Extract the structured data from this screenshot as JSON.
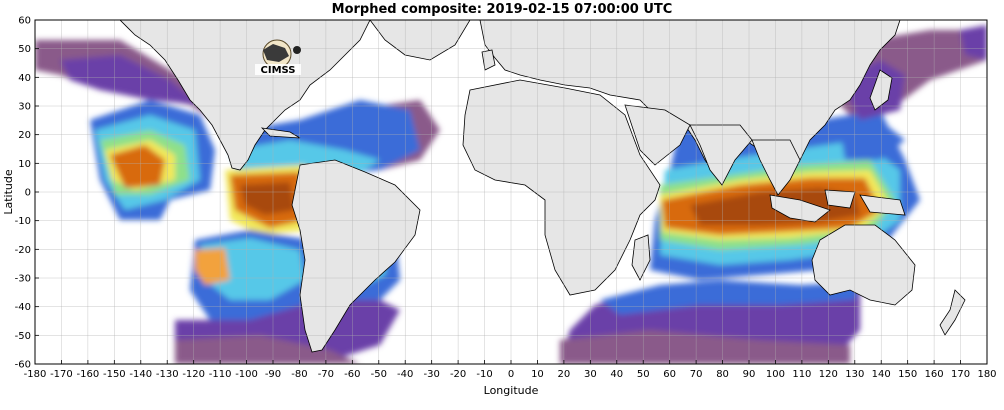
{
  "title": "Morphed composite: 2019-02-15 07:00:00 UTC",
  "logo_text": "CIMSS",
  "axes": {
    "xlabel": "Longitude",
    "ylabel": "Latitude",
    "xlim": [
      -180,
      180
    ],
    "ylim": [
      -60,
      60
    ],
    "x_ticks": [
      "-180",
      "-170",
      "-160",
      "-150",
      "-140",
      "-130",
      "-120",
      "-110",
      "-100",
      "-90",
      "-80",
      "-70",
      "-60",
      "-50",
      "-40",
      "-30",
      "-20",
      "-10",
      "0",
      "10",
      "20",
      "30",
      "40",
      "50",
      "60",
      "70",
      "80",
      "90",
      "100",
      "110",
      "120",
      "130",
      "140",
      "150",
      "160",
      "170",
      "180"
    ],
    "y_ticks": [
      "-60",
      "-50",
      "-40",
      "-30",
      "-20",
      "-10",
      "0",
      "10",
      "20",
      "30",
      "40",
      "50",
      "60"
    ],
    "grid": true
  },
  "colors": {
    "land": "#e6e6e6",
    "background": "#ffffff",
    "scale": [
      "#8a5a8a",
      "#6b3fa8",
      "#3b6cd8",
      "#56c8e8",
      "#8ee08a",
      "#f2e85a",
      "#f2a23c",
      "#d86a10",
      "#a84808"
    ]
  }
}
